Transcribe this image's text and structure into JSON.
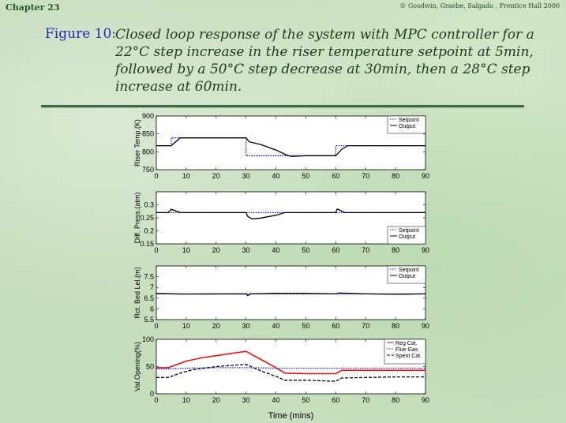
{
  "header": {
    "chapter": "Chapter 23",
    "copyright": "© Goodwin, Graebe, Salgado , Prentice Hall 2000"
  },
  "caption": {
    "label": "Figure 10:",
    "text": "Closed loop response of the system with MPC controller for a 22°C step increase in the riser temperature setpoint at 5min, followed by a 50°C step decrease at 30min, then a 28°C step increase at 60min."
  },
  "colors": {
    "setpoint": "#1010e0",
    "output": "#000000",
    "reg_cat": "#ee1111",
    "flue_gas": "#2222ee",
    "spent_cat": "#000000"
  },
  "chart_data": [
    {
      "type": "line",
      "ylabel": "Riser Temp.(K)",
      "xlabel": "",
      "xlim": [
        0,
        90
      ],
      "ylim": [
        750,
        900
      ],
      "xticks": [
        0,
        10,
        20,
        30,
        40,
        50,
        60,
        70,
        80,
        90
      ],
      "yticks": [
        750,
        800,
        850,
        900
      ],
      "legend": "top-right",
      "series": [
        {
          "name": "Setpoint",
          "style": "dotted",
          "color": "#1010e0",
          "x": [
            0,
            5,
            5,
            30,
            30,
            60,
            60,
            90
          ],
          "y": [
            817,
            817,
            839,
            839,
            789,
            789,
            817,
            817
          ]
        },
        {
          "name": "Output",
          "style": "solid",
          "color": "#000000",
          "x": [
            0,
            5,
            8,
            30,
            31,
            35,
            40,
            43,
            45,
            50,
            60,
            62,
            64,
            90
          ],
          "y": [
            817,
            817,
            839,
            839,
            828,
            820,
            805,
            793,
            787,
            789,
            789,
            807,
            817,
            817
          ]
        }
      ]
    },
    {
      "type": "line",
      "ylabel": "Diff. Press.(atm)",
      "xlabel": "",
      "xlim": [
        0,
        90
      ],
      "ylim": [
        0.15,
        0.35
      ],
      "xticks": [
        0,
        10,
        20,
        30,
        40,
        50,
        60,
        70,
        80,
        90
      ],
      "yticks": [
        0.15,
        0.2,
        0.25,
        0.3
      ],
      "ytick_labels": [
        "0.15",
        "0.2",
        "0.25",
        "0.3"
      ],
      "legend": "bottom-right",
      "series": [
        {
          "name": "Setpoint",
          "style": "dotted",
          "color": "#1010e0",
          "x": [
            0,
            90
          ],
          "y": [
            0.27,
            0.27
          ]
        },
        {
          "name": "Output",
          "style": "solid",
          "color": "#000000",
          "x": [
            0,
            4,
            5,
            6,
            8,
            30,
            30.5,
            32,
            35,
            40,
            43,
            60,
            60.5,
            61.5,
            63,
            90
          ],
          "y": [
            0.27,
            0.27,
            0.283,
            0.279,
            0.27,
            0.27,
            0.256,
            0.246,
            0.249,
            0.26,
            0.27,
            0.27,
            0.284,
            0.279,
            0.27,
            0.27
          ]
        }
      ]
    },
    {
      "type": "line",
      "ylabel": "Rct. Bed Lel.(m)",
      "xlabel": "",
      "xlim": [
        0,
        90
      ],
      "ylim": [
        5.5,
        8.0
      ],
      "xticks": [
        0,
        10,
        20,
        30,
        40,
        50,
        60,
        70,
        80,
        90
      ],
      "yticks": [
        5.5,
        6,
        6.5,
        7,
        7.5
      ],
      "ytick_labels": [
        "5.5",
        "6",
        "6.5",
        "7",
        "7.5"
      ],
      "legend": "top-right",
      "series": [
        {
          "name": "Setpoint",
          "style": "dotted",
          "color": "#1010e0",
          "x": [
            0,
            90
          ],
          "y": [
            6.7,
            6.7
          ]
        },
        {
          "name": "Output",
          "style": "solid",
          "color": "#000000",
          "x": [
            0,
            8,
            30,
            30.5,
            31.5,
            40,
            50,
            60,
            61,
            70,
            80,
            90
          ],
          "y": [
            6.72,
            6.69,
            6.7,
            6.62,
            6.7,
            6.72,
            6.72,
            6.7,
            6.74,
            6.7,
            6.68,
            6.7
          ]
        }
      ]
    },
    {
      "type": "line",
      "ylabel": "Val.Opening(%)",
      "xlabel": "Time (mins)",
      "xlim": [
        0,
        90
      ],
      "ylim": [
        0,
        100
      ],
      "xticks": [
        0,
        10,
        20,
        30,
        40,
        50,
        60,
        70,
        80,
        90
      ],
      "yticks": [
        0,
        50,
        100
      ],
      "legend": "top-right",
      "series": [
        {
          "name": "Reg Cat.",
          "style": "solid",
          "color": "#ee1111",
          "x": [
            0,
            4,
            6,
            10,
            15,
            20,
            25,
            30,
            35,
            40,
            43,
            50,
            55,
            60,
            62,
            70,
            80,
            90
          ],
          "y": [
            48,
            48,
            52,
            60,
            66,
            70,
            74,
            78,
            63,
            48,
            38,
            37,
            37,
            37,
            43,
            43,
            43,
            43
          ]
        },
        {
          "name": "Flue Gas",
          "style": "dotted",
          "color": "#2222ee",
          "x": [
            0,
            5,
            10,
            20,
            30,
            40,
            50,
            60,
            70,
            80,
            90
          ],
          "y": [
            46,
            46,
            47,
            48,
            48,
            47,
            47,
            47,
            47,
            47,
            47
          ]
        },
        {
          "name": "Spent Cat.",
          "style": "dashed",
          "color": "#000000",
          "x": [
            0,
            4,
            8,
            12,
            20,
            30,
            35,
            40,
            43,
            50,
            60,
            62,
            70,
            80,
            90
          ],
          "y": [
            30,
            30,
            38,
            44,
            50,
            54,
            42,
            32,
            25,
            25,
            23,
            29,
            30,
            31,
            31
          ]
        }
      ]
    }
  ]
}
